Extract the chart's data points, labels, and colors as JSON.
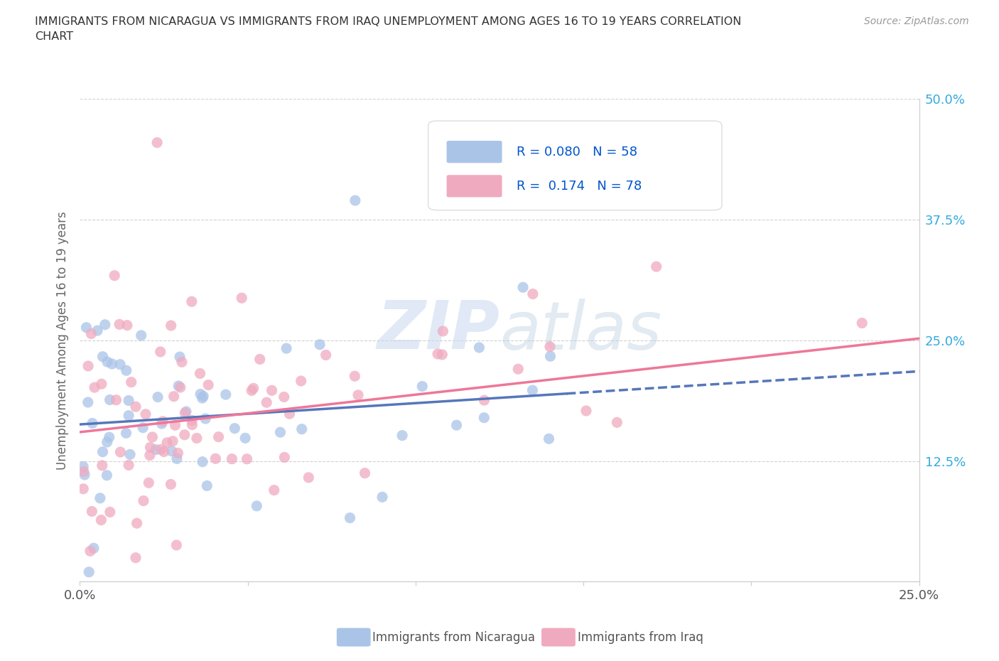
{
  "title": "IMMIGRANTS FROM NICARAGUA VS IMMIGRANTS FROM IRAQ UNEMPLOYMENT AMONG AGES 16 TO 19 YEARS CORRELATION\nCHART",
  "source_text": "Source: ZipAtlas.com",
  "ylabel": "Unemployment Among Ages 16 to 19 years",
  "xlim": [
    0.0,
    0.25
  ],
  "ylim": [
    0.0,
    0.5
  ],
  "xtick_vals": [
    0.0,
    0.05,
    0.1,
    0.15,
    0.2,
    0.25
  ],
  "xtick_labels": [
    "0.0%",
    "",
    "",
    "",
    "",
    "25.0%"
  ],
  "ytick_vals": [
    0.0,
    0.125,
    0.25,
    0.375,
    0.5
  ],
  "ytick_labels_left": [
    "",
    "",
    "",
    "",
    ""
  ],
  "ytick_labels_right": [
    "",
    "12.5%",
    "25.0%",
    "37.5%",
    "50.0%"
  ],
  "grid_color": "#cccccc",
  "background_color": "#ffffff",
  "nicaragua_color": "#aac4e8",
  "iraq_color": "#f0aac0",
  "nicaragua_line_color": "#5577bb",
  "iraq_line_color": "#ee7799",
  "R_nicaragua": 0.08,
  "N_nicaragua": 58,
  "R_iraq": 0.174,
  "N_iraq": 78,
  "nic_line_start_y": 0.163,
  "nic_line_end_y": 0.218,
  "iraq_line_start_y": 0.155,
  "iraq_line_end_y": 0.252,
  "legend_R_color": "#0055cc",
  "legend_N_color": "#0055cc",
  "watermark_color": "#dde8f5",
  "tick_label_color": "#33aadd",
  "axis_color": "#cccccc",
  "bottom_label_color": "#555555"
}
